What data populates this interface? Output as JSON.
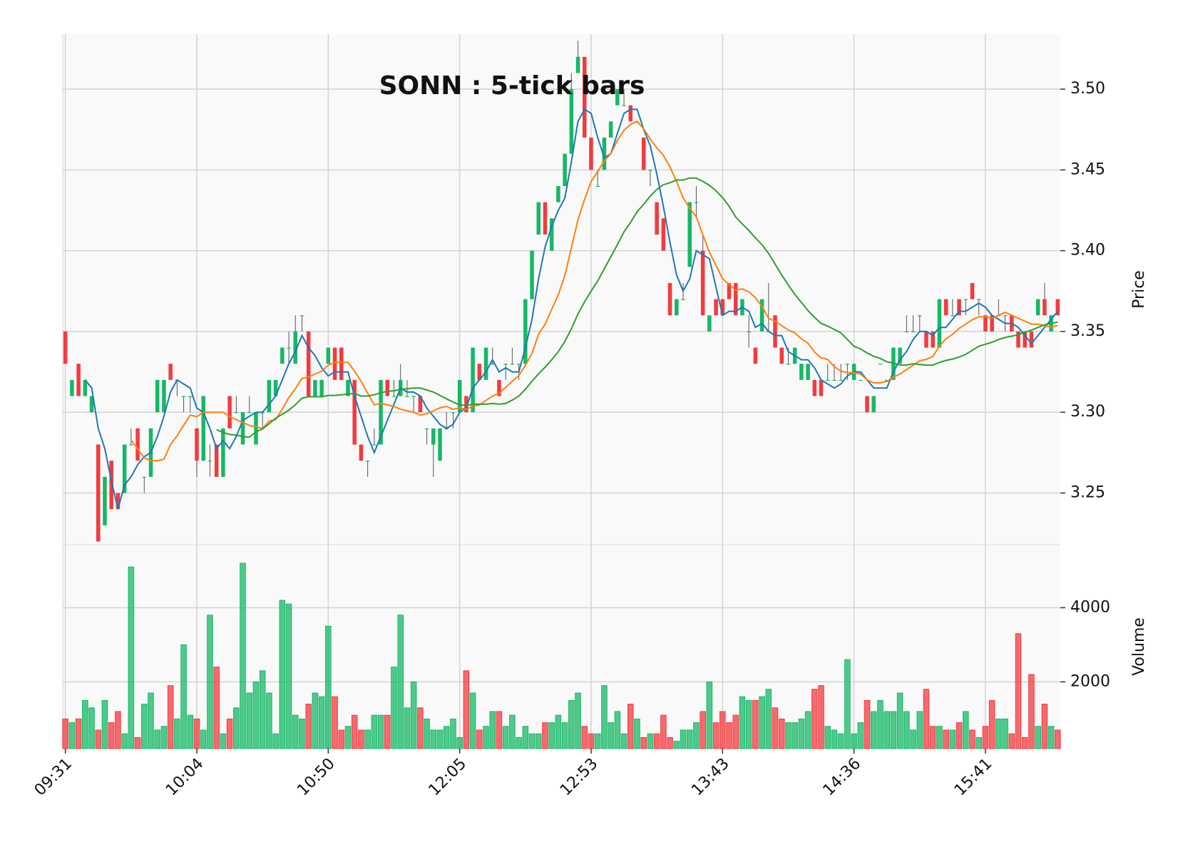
{
  "chart_data": {
    "type": "candlestick",
    "title": "SONN : 5-tick bars",
    "ylabel": "Price",
    "volume_label": "Volume",
    "categories": [
      "09:31",
      null,
      null,
      null,
      null,
      null,
      null,
      null,
      null,
      null,
      null,
      null,
      null,
      null,
      null,
      null,
      null,
      null,
      null,
      null,
      "10:04",
      null,
      null,
      null,
      null,
      null,
      null,
      null,
      null,
      null,
      null,
      null,
      null,
      null,
      null,
      null,
      null,
      null,
      null,
      null,
      "10:50",
      null,
      null,
      null,
      null,
      null,
      null,
      null,
      null,
      null,
      null,
      null,
      null,
      null,
      null,
      null,
      null,
      null,
      null,
      null,
      "12:05",
      null,
      null,
      null,
      null,
      null,
      null,
      null,
      null,
      null,
      null,
      null,
      null,
      null,
      null,
      null,
      null,
      null,
      null,
      null,
      "12:53",
      null,
      null,
      null,
      null,
      null,
      null,
      null,
      null,
      null,
      null,
      null,
      null,
      null,
      null,
      null,
      null,
      null,
      null,
      null,
      "13:43",
      null,
      null,
      null,
      null,
      null,
      null,
      null,
      null,
      null,
      null,
      null,
      null,
      null,
      null,
      null,
      null,
      null,
      null,
      null,
      "14:36",
      null,
      null,
      null,
      null,
      null,
      null,
      null,
      null,
      null,
      null,
      null,
      null,
      null,
      null,
      null,
      null,
      null,
      null,
      null,
      "15:41",
      null,
      null,
      null,
      null,
      null,
      null,
      null,
      null,
      null,
      null,
      null
    ],
    "open": [
      3.35,
      3.31,
      3.33,
      3.31,
      3.3,
      3.28,
      3.23,
      3.27,
      3.25,
      3.25,
      3.28,
      3.29,
      3.26,
      3.26,
      3.3,
      3.3,
      3.33,
      3.32,
      3.31,
      3.31,
      3.29,
      3.27,
      3.27,
      3.28,
      3.26,
      3.31,
      3.3,
      3.28,
      3.3,
      3.28,
      3.3,
      3.3,
      3.31,
      3.33,
      3.34,
      3.33,
      3.36,
      3.35,
      3.31,
      3.31,
      3.33,
      3.34,
      3.34,
      3.31,
      3.32,
      3.28,
      3.27,
      3.28,
      3.28,
      3.32,
      3.31,
      3.31,
      3.31,
      3.31,
      3.31,
      3.29,
      3.28,
      3.27,
      3.29,
      3.3,
      3.3,
      3.31,
      3.3,
      3.33,
      3.32,
      3.33,
      3.32,
      3.33,
      3.33,
      3.33,
      3.33,
      3.37,
      3.41,
      3.43,
      3.4,
      3.43,
      3.44,
      3.46,
      3.51,
      3.52,
      3.47,
      3.44,
      3.45,
      3.47,
      3.49,
      3.49,
      3.49,
      3.48,
      3.47,
      3.45,
      3.43,
      3.42,
      3.38,
      3.36,
      3.37,
      3.39,
      3.43,
      3.4,
      3.35,
      3.37,
      3.37,
      3.38,
      3.38,
      3.36,
      3.35,
      3.34,
      3.35,
      3.35,
      3.36,
      3.34,
      3.33,
      3.33,
      3.32,
      3.32,
      3.32,
      3.32,
      3.32,
      3.32,
      3.32,
      3.33,
      3.32,
      3.32,
      3.31,
      3.3,
      3.33,
      3.32,
      3.32,
      3.33,
      3.35,
      3.35,
      3.36,
      3.35,
      3.35,
      3.34,
      3.37,
      3.36,
      3.37,
      3.37,
      3.38,
      3.37,
      3.36,
      3.36,
      3.36,
      3.36,
      3.36,
      3.35,
      3.35,
      3.35,
      3.36,
      3.37,
      3.35,
      3.37
    ],
    "high": [
      3.35,
      3.32,
      3.33,
      3.32,
      3.31,
      3.28,
      3.26,
      3.27,
      3.25,
      3.28,
      3.29,
      3.29,
      3.26,
      3.29,
      3.32,
      3.32,
      3.33,
      3.32,
      3.31,
      3.31,
      3.29,
      3.31,
      3.28,
      3.28,
      3.29,
      3.31,
      3.31,
      3.3,
      3.31,
      3.3,
      3.3,
      3.32,
      3.32,
      3.34,
      3.35,
      3.36,
      3.36,
      3.35,
      3.32,
      3.32,
      3.34,
      3.34,
      3.34,
      3.32,
      3.32,
      3.28,
      3.27,
      3.29,
      3.32,
      3.32,
      3.32,
      3.33,
      3.32,
      3.31,
      3.31,
      3.29,
      3.29,
      3.29,
      3.3,
      3.3,
      3.32,
      3.31,
      3.34,
      3.33,
      3.34,
      3.34,
      3.32,
      3.33,
      3.34,
      3.33,
      3.37,
      3.4,
      3.43,
      3.43,
      3.42,
      3.44,
      3.46,
      3.51,
      3.53,
      3.52,
      3.47,
      3.45,
      3.47,
      3.48,
      3.5,
      3.5,
      3.49,
      3.48,
      3.47,
      3.45,
      3.43,
      3.42,
      3.38,
      3.37,
      3.38,
      3.43,
      3.44,
      3.41,
      3.36,
      3.37,
      3.37,
      3.38,
      3.38,
      3.37,
      3.36,
      3.34,
      3.37,
      3.38,
      3.36,
      3.34,
      3.34,
      3.34,
      3.33,
      3.33,
      3.32,
      3.32,
      3.33,
      3.33,
      3.33,
      3.33,
      3.33,
      3.32,
      3.31,
      3.31,
      3.33,
      3.32,
      3.34,
      3.34,
      3.36,
      3.36,
      3.36,
      3.35,
      3.35,
      3.37,
      3.37,
      3.37,
      3.37,
      3.37,
      3.38,
      3.37,
      3.36,
      3.36,
      3.37,
      3.36,
      3.36,
      3.35,
      3.35,
      3.35,
      3.37,
      3.38,
      3.36,
      3.37
    ],
    "low": [
      3.33,
      3.31,
      3.31,
      3.31,
      3.3,
      3.22,
      3.23,
      3.24,
      3.24,
      3.25,
      3.28,
      3.27,
      3.25,
      3.26,
      3.3,
      3.3,
      3.32,
      3.31,
      3.3,
      3.3,
      3.26,
      3.27,
      3.26,
      3.26,
      3.26,
      3.29,
      3.3,
      3.28,
      3.3,
      3.28,
      3.29,
      3.3,
      3.31,
      3.33,
      3.33,
      3.33,
      3.35,
      3.31,
      3.31,
      3.31,
      3.33,
      3.32,
      3.32,
      3.31,
      3.28,
      3.27,
      3.26,
      3.28,
      3.28,
      3.31,
      3.31,
      3.31,
      3.31,
      3.3,
      3.3,
      3.28,
      3.26,
      3.27,
      3.29,
      3.29,
      3.3,
      3.3,
      3.3,
      3.32,
      3.32,
      3.33,
      3.31,
      3.32,
      3.33,
      3.32,
      3.33,
      3.37,
      3.41,
      3.41,
      3.4,
      3.43,
      3.44,
      3.46,
      3.51,
      3.47,
      3.45,
      3.44,
      3.45,
      3.47,
      3.49,
      3.49,
      3.48,
      3.48,
      3.45,
      3.44,
      3.41,
      3.4,
      3.36,
      3.36,
      3.37,
      3.39,
      3.42,
      3.36,
      3.35,
      3.36,
      3.36,
      3.37,
      3.36,
      3.36,
      3.34,
      3.33,
      3.35,
      3.35,
      3.34,
      3.33,
      3.33,
      3.33,
      3.32,
      3.32,
      3.31,
      3.31,
      3.32,
      3.32,
      3.32,
      3.32,
      3.32,
      3.32,
      3.3,
      3.3,
      3.33,
      3.32,
      3.32,
      3.33,
      3.35,
      3.35,
      3.35,
      3.34,
      3.34,
      3.34,
      3.36,
      3.36,
      3.36,
      3.36,
      3.37,
      3.36,
      3.35,
      3.35,
      3.36,
      3.35,
      3.35,
      3.34,
      3.34,
      3.34,
      3.36,
      3.36,
      3.35,
      3.36
    ],
    "close": [
      3.33,
      3.32,
      3.31,
      3.32,
      3.31,
      3.22,
      3.26,
      3.24,
      3.24,
      3.28,
      3.28,
      3.27,
      3.26,
      3.29,
      3.32,
      3.32,
      3.32,
      3.32,
      3.31,
      3.31,
      3.27,
      3.31,
      3.27,
      3.26,
      3.29,
      3.29,
      3.3,
      3.3,
      3.3,
      3.3,
      3.3,
      3.32,
      3.32,
      3.34,
      3.34,
      3.35,
      3.36,
      3.31,
      3.32,
      3.32,
      3.34,
      3.32,
      3.32,
      3.32,
      3.28,
      3.27,
      3.27,
      3.28,
      3.32,
      3.31,
      3.31,
      3.32,
      3.31,
      3.31,
      3.3,
      3.29,
      3.29,
      3.29,
      3.29,
      3.3,
      3.32,
      3.3,
      3.34,
      3.32,
      3.34,
      3.33,
      3.31,
      3.33,
      3.33,
      3.33,
      3.37,
      3.4,
      3.43,
      3.41,
      3.42,
      3.44,
      3.46,
      3.5,
      3.52,
      3.47,
      3.45,
      3.44,
      3.47,
      3.48,
      3.5,
      3.49,
      3.48,
      3.48,
      3.45,
      3.45,
      3.41,
      3.4,
      3.36,
      3.37,
      3.37,
      3.43,
      3.43,
      3.36,
      3.36,
      3.36,
      3.36,
      3.37,
      3.36,
      3.37,
      3.35,
      3.33,
      3.37,
      3.35,
      3.34,
      3.33,
      3.33,
      3.34,
      3.33,
      3.33,
      3.31,
      3.31,
      3.32,
      3.32,
      3.32,
      3.33,
      3.33,
      3.32,
      3.3,
      3.31,
      3.33,
      3.32,
      3.34,
      3.34,
      3.35,
      3.35,
      3.36,
      3.34,
      3.34,
      3.37,
      3.36,
      3.36,
      3.36,
      3.37,
      3.37,
      3.37,
      3.35,
      3.35,
      3.36,
      3.36,
      3.35,
      3.34,
      3.34,
      3.34,
      3.37,
      3.36,
      3.36,
      3.36
    ],
    "volume": [
      1000,
      900,
      1000,
      1500,
      1300,
      700,
      1500,
      900,
      1200,
      600,
      5100,
      500,
      1400,
      1700,
      700,
      800,
      1900,
      1000,
      3000,
      1100,
      1000,
      700,
      3800,
      2400,
      600,
      1000,
      1300,
      5200,
      1700,
      2000,
      2300,
      1700,
      600,
      4200,
      4100,
      1100,
      1000,
      1400,
      1700,
      1600,
      3500,
      1600,
      700,
      800,
      1100,
      700,
      700,
      1100,
      1100,
      1100,
      2400,
      3800,
      1300,
      2000,
      1300,
      1000,
      700,
      700,
      800,
      1000,
      500,
      2300,
      1700,
      700,
      800,
      1200,
      1200,
      800,
      1100,
      500,
      800,
      600,
      600,
      900,
      900,
      1100,
      900,
      1500,
      1700,
      800,
      600,
      600,
      1900,
      900,
      1200,
      600,
      1400,
      1000,
      500,
      600,
      600,
      1100,
      500,
      400,
      700,
      700,
      900,
      1200,
      2000,
      900,
      1200,
      900,
      1100,
      1600,
      1500,
      1500,
      1600,
      1800,
      1300,
      1000,
      900,
      900,
      1000,
      1200,
      1800,
      1900,
      800,
      700,
      600,
      2600,
      600,
      900,
      1500,
      1200,
      1500,
      1200,
      1200,
      1700,
      1200,
      700,
      1200,
      1800,
      800,
      800,
      700,
      700,
      900,
      1200,
      700,
      500,
      800,
      1500,
      1000,
      1000,
      600,
      3300,
      500,
      2200,
      800,
      1400,
      800,
      700
    ],
    "up_color": "#16b865",
    "down_color": "#f23b3f",
    "ylim": [
      3.218,
      3.534
    ],
    "yticks": [
      3.25,
      {
        "value": 3.3,
        "label": "3.30"
      },
      3.35,
      {
        "value": 3.4,
        "label": "3.40"
      },
      3.45,
      {
        "value": 3.5,
        "label": "3.50"
      }
    ],
    "volume_ylim": [
      200,
      5700
    ],
    "volume_yticks": [
      2000,
      4000
    ],
    "grid": true,
    "mav": {
      "windows": [
        4,
        11,
        24
      ],
      "colors": [
        "#1f77b4",
        "#ff7f0e",
        "#2ca02c"
      ]
    }
  }
}
